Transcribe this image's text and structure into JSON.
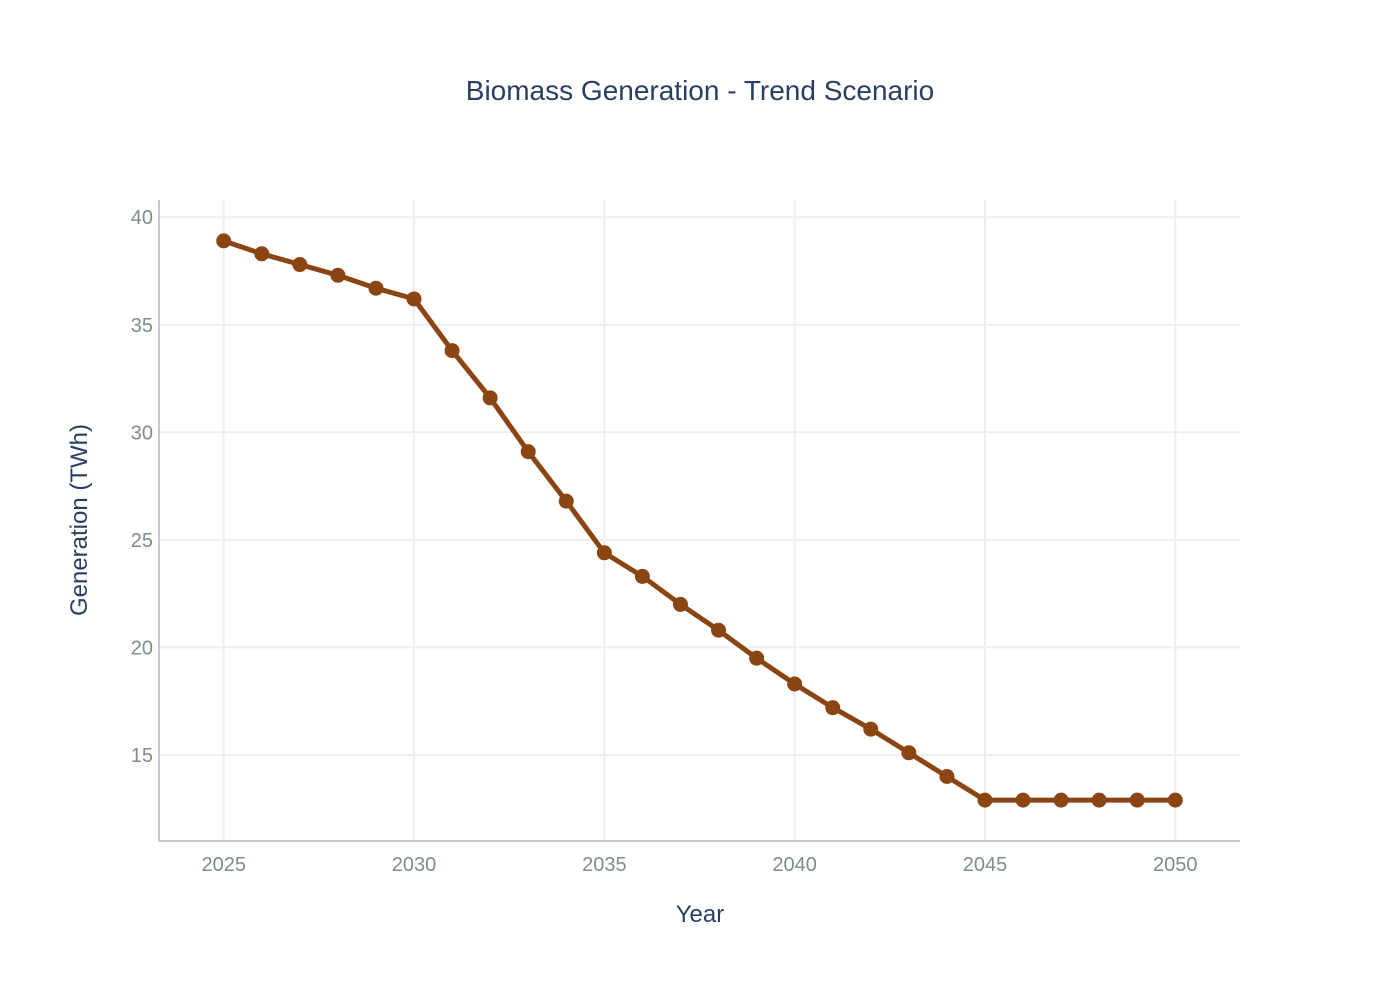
{
  "chart_data": {
    "type": "line",
    "title": "Biomass Generation - Trend Scenario",
    "xlabel": "Year",
    "ylabel": "Generation (TWh)",
    "xlim": [
      2023.3,
      2051.7
    ],
    "ylim": [
      11.0,
      40.8
    ],
    "x_ticks": [
      2025,
      2030,
      2035,
      2040,
      2045,
      2050
    ],
    "y_ticks": [
      15,
      20,
      25,
      30,
      35,
      40
    ],
    "grid": true,
    "colors": {
      "series": "#8b4513",
      "grid": "#eceff1",
      "axis": "#b0b8bf",
      "title": "#2a3f5f",
      "ticks": "#7f8c8d"
    },
    "series": [
      {
        "x": [
          2025,
          2026,
          2027,
          2028,
          2029,
          2030,
          2031,
          2032,
          2033,
          2034,
          2035,
          2036,
          2037,
          2038,
          2039,
          2040,
          2041,
          2042,
          2043,
          2044,
          2045,
          2046,
          2047,
          2048,
          2049,
          2050
        ],
        "values": [
          38.9,
          38.3,
          37.8,
          37.3,
          36.7,
          36.2,
          33.8,
          31.6,
          29.1,
          26.8,
          24.4,
          23.3,
          22.0,
          20.8,
          19.5,
          18.3,
          17.2,
          16.2,
          15.1,
          14.0,
          12.9,
          12.9,
          12.9,
          12.9,
          12.9,
          12.9
        ]
      }
    ]
  }
}
